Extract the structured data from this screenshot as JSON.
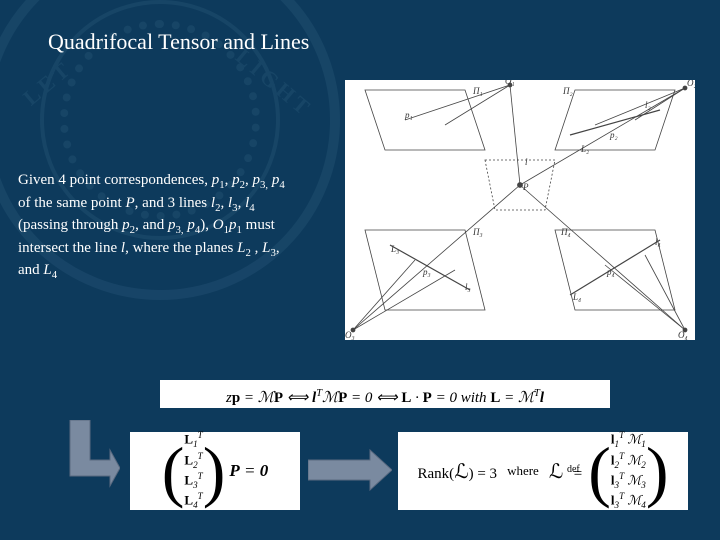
{
  "slide": {
    "background_color": "#0d3a5c",
    "seal_color": "#2a5a7a",
    "title": "Quadrifocal Tensor and Lines",
    "body_html": "Given 4 point correspondences, <i>p</i><span class='sub'>1</span>, <i>p</i><span class='sub'>2</span>, <i>p</i><span class='sub'>3,</span> <i>p</i><span class='sub'>4</span> of the same point <i>P</i>, and 3 lines <i>l</i><span class='sub'>2</span>, <i>l</i><span class='sub'>3</span>, <i>l</i><span class='sub'>4</span> (passing through <i>p</i><span class='sub'>2</span>, and <i>p</i><span class='sub'>3,</span> <i>p</i><span class='sub'>4</span>), <i>O</i><span class='sub'>1</span><i>p</i><span class='sub'>1</span> must intersect the line <i>l</i>, where the planes <i>L</i><span class='sub'>2</span> , <i>L</i><span class='sub'>3</span>, and <i>L</i><span class='sub'>4</span>"
  },
  "diagram": {
    "type": "geometric",
    "background": "#ffffff",
    "stroke": "#333333",
    "views": 4,
    "labels": [
      "O₁",
      "O₂",
      "O₃",
      "O₄",
      "Π₁",
      "Π₂",
      "Π₃",
      "Π₄",
      "P",
      "p₁",
      "p₂",
      "p₃",
      "p₄",
      "l",
      "l₂",
      "l₃",
      "l₄",
      "L₂",
      "L₃",
      "L₄"
    ]
  },
  "equations": {
    "eq1": "z<b>p</b> = ℳ<b>P</b> ⟺ <b>l</b><sup>T</sup>ℳ<b>P</b> = 0 ⟺ <b>L</b> · <b>P</b> = 0 with <b>L</b> = ℳ<sup>T</sup><b>l</b>",
    "eq2": {
      "matrix_rows": [
        "L₁ᵀ",
        "L₂ᵀ",
        "L₃ᵀ",
        "L₄ᵀ"
      ],
      "rhs": "P = 0"
    },
    "eq3": {
      "lhs": "Rank(ℒ) = 3",
      "where": "where",
      "def": "ℒ ≝",
      "matrix_rows": [
        "l₁ᵀ ℳ₁",
        "l₂ᵀ ℳ₂",
        "l₃ᵀ ℳ₃",
        "l₃ᵀ ℳ₄"
      ]
    },
    "eq_bg": "#ffffff",
    "font": "Times New Roman"
  },
  "arrows": {
    "fill": "#7a8aa0",
    "stroke": "#5a6a80"
  }
}
